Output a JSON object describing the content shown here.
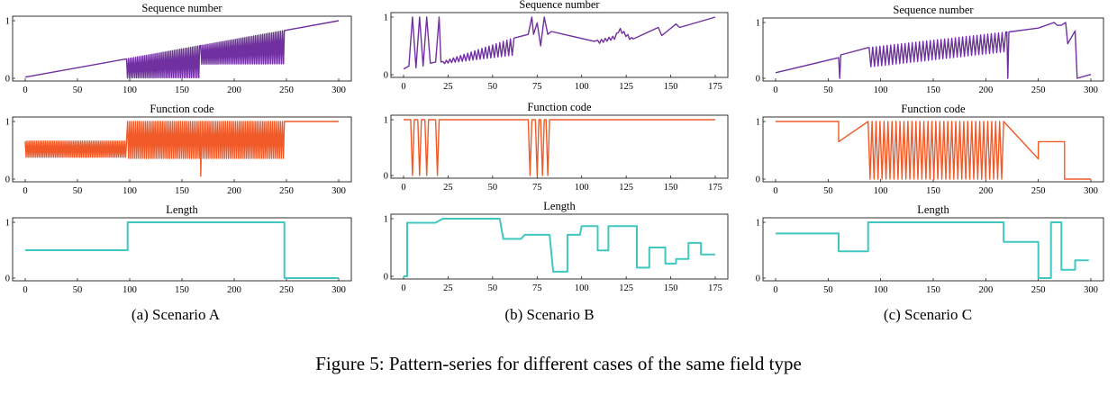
{
  "figure_caption": "Figure 5: Pattern-series for different cases of the same field type",
  "colors": {
    "sequence": "#7030A0",
    "function": "#F05A28",
    "length": "#40C8C0"
  },
  "scenarios": [
    {
      "caption": "(a)  Scenario A"
    },
    {
      "caption": "(b)  Scenario B"
    },
    {
      "caption": "(c)  Scenario C"
    }
  ],
  "chart_data": [
    {
      "type": "line",
      "scenario": "A",
      "title": "Sequence number",
      "color": "sequence",
      "xlim": [
        0,
        300
      ],
      "ylim": [
        0,
        1
      ],
      "xticks": [
        0,
        50,
        100,
        150,
        200,
        250,
        300
      ],
      "yticks": [
        0,
        1
      ],
      "pattern": {
        "kind": "linear_with_sawtooth",
        "base": [
          [
            0,
            0.02
          ],
          [
            300,
            1.0
          ]
        ],
        "segments": [
          {
            "from": 97,
            "to": 167,
            "n": 40,
            "low": 0.0
          },
          {
            "from": 168,
            "to": 248,
            "n": 46,
            "low": 0.24
          }
        ]
      }
    },
    {
      "type": "line",
      "scenario": "A",
      "title": "Function code",
      "color": "function",
      "xlim": [
        0,
        300
      ],
      "ylim": [
        0,
        1
      ],
      "xticks": [
        0,
        50,
        100,
        150,
        200,
        250,
        300
      ],
      "yticks": [
        0,
        1
      ],
      "pattern": {
        "kind": "oscillation",
        "segments": [
          {
            "from": 0,
            "to": 97,
            "n": 55,
            "lo": 0.38,
            "hi": 0.66
          },
          {
            "from": 98,
            "to": 248,
            "n": 80,
            "lo": 0.36,
            "hi": 1.0
          }
        ],
        "spikes": [
          [
            168,
            0.05
          ]
        ],
        "tail": [
          [
            250,
            1.0
          ],
          [
            300,
            1.0
          ]
        ]
      }
    },
    {
      "type": "line",
      "scenario": "A",
      "title": "Length",
      "color": "length",
      "xlim": [
        0,
        300
      ],
      "ylim": [
        0,
        1
      ],
      "xticks": [
        0,
        50,
        100,
        150,
        200,
        250,
        300
      ],
      "yticks": [
        0,
        1
      ],
      "steps": [
        [
          0,
          0.5
        ],
        [
          98,
          0.5
        ],
        [
          98,
          1.0
        ],
        [
          248,
          1.0
        ],
        [
          248,
          0.0
        ],
        [
          300,
          0.0
        ]
      ]
    },
    {
      "type": "line",
      "scenario": "B",
      "title": "Sequence number",
      "color": "sequence",
      "xlim": [
        0,
        175
      ],
      "ylim": [
        0,
        1
      ],
      "xticks": [
        0,
        25,
        50,
        75,
        100,
        125,
        150,
        175
      ],
      "yticks": [
        0,
        1
      ],
      "points": [
        [
          0,
          0.1
        ],
        [
          3,
          0.15
        ],
        [
          5,
          1.0
        ],
        [
          7,
          0.12
        ],
        [
          9,
          1.0
        ],
        [
          11,
          0.15
        ],
        [
          13,
          1.0
        ],
        [
          15,
          0.2
        ],
        [
          18,
          0.22
        ],
        [
          20,
          1.0
        ],
        [
          21,
          0.22
        ],
        [
          60,
          0.62
        ],
        [
          70,
          0.7
        ],
        [
          72,
          1.0
        ],
        [
          73,
          0.7
        ],
        [
          75,
          0.9
        ],
        [
          77,
          0.5
        ],
        [
          79,
          1.0
        ],
        [
          81,
          0.7
        ],
        [
          83,
          0.75
        ],
        [
          107,
          0.58
        ],
        [
          119,
          0.68
        ],
        [
          121,
          0.82
        ],
        [
          129,
          0.62
        ],
        [
          143,
          0.82
        ],
        [
          145,
          0.68
        ],
        [
          153,
          0.88
        ],
        [
          155,
          0.82
        ],
        [
          175,
          1.0
        ]
      ],
      "oscillations": [
        {
          "from": 22,
          "to": 62,
          "n": 20,
          "amp_start": 0.04,
          "amp_end": 0.3
        },
        {
          "from": 109,
          "to": 128,
          "n": 9,
          "amp_start": 0.06,
          "amp_end": 0.06
        }
      ]
    },
    {
      "type": "line",
      "scenario": "B",
      "title": "Function code",
      "color": "function",
      "xlim": [
        0,
        175
      ],
      "ylim": [
        0,
        1
      ],
      "xticks": [
        0,
        25,
        50,
        75,
        100,
        125,
        150,
        175
      ],
      "yticks": [
        0,
        1
      ],
      "points": [
        [
          0,
          1.0
        ],
        [
          4,
          1.0
        ],
        [
          5,
          0.0
        ],
        [
          6,
          1.0
        ],
        [
          8,
          1.0
        ],
        [
          9,
          0.0
        ],
        [
          10,
          1.0
        ],
        [
          12,
          1.0
        ],
        [
          13,
          0.0
        ],
        [
          14,
          1.0
        ],
        [
          18,
          1.0
        ],
        [
          19,
          0.0
        ],
        [
          20,
          1.0
        ],
        [
          70,
          1.0
        ],
        [
          71,
          0.0
        ],
        [
          72,
          1.0
        ],
        [
          74,
          1.0
        ],
        [
          75,
          0.0
        ],
        [
          76,
          1.0
        ],
        [
          77,
          1.0
        ],
        [
          78,
          0.0
        ],
        [
          79,
          1.0
        ],
        [
          80,
          1.0
        ],
        [
          81,
          0.0
        ],
        [
          82,
          1.0
        ],
        [
          175,
          1.0
        ]
      ]
    },
    {
      "type": "line",
      "scenario": "B",
      "title": "Length",
      "color": "length",
      "xlim": [
        0,
        175
      ],
      "ylim": [
        0,
        1
      ],
      "xticks": [
        0,
        25,
        50,
        75,
        100,
        125,
        150,
        175
      ],
      "yticks": [
        0,
        1
      ],
      "steps": [
        [
          0,
          0.0
        ],
        [
          2,
          0.0
        ],
        [
          2,
          0.93
        ],
        [
          18,
          0.93
        ],
        [
          22,
          1.0
        ],
        [
          54,
          1.0
        ],
        [
          56,
          0.65
        ],
        [
          66,
          0.65
        ],
        [
          68,
          0.72
        ],
        [
          82,
          0.72
        ],
        [
          84,
          0.08
        ],
        [
          92,
          0.08
        ],
        [
          92,
          0.72
        ],
        [
          99,
          0.72
        ],
        [
          100,
          0.87
        ],
        [
          109,
          0.87
        ],
        [
          109,
          0.45
        ],
        [
          115,
          0.45
        ],
        [
          115,
          0.87
        ],
        [
          131,
          0.87
        ],
        [
          131,
          0.15
        ],
        [
          138,
          0.15
        ],
        [
          138,
          0.5
        ],
        [
          147,
          0.5
        ],
        [
          147,
          0.22
        ],
        [
          153,
          0.22
        ],
        [
          153,
          0.3
        ],
        [
          160,
          0.3
        ],
        [
          160,
          0.58
        ],
        [
          167,
          0.58
        ],
        [
          167,
          0.38
        ],
        [
          175,
          0.38
        ]
      ]
    },
    {
      "type": "line",
      "scenario": "C",
      "title": "Sequence number",
      "color": "sequence",
      "xlim": [
        0,
        300
      ],
      "ylim": [
        0,
        1
      ],
      "xticks": [
        0,
        50,
        100,
        150,
        200,
        250,
        300
      ],
      "yticks": [
        0,
        1
      ],
      "points": [
        [
          0,
          0.1
        ],
        [
          60,
          0.37
        ],
        [
          61,
          0.0
        ],
        [
          62,
          0.42
        ],
        [
          88,
          0.55
        ],
        [
          220,
          0.83
        ],
        [
          221,
          0.0
        ],
        [
          222,
          0.83
        ],
        [
          250,
          0.9
        ],
        [
          265,
          1.0
        ],
        [
          268,
          0.95
        ],
        [
          272,
          0.95
        ],
        [
          276,
          1.0
        ],
        [
          278,
          0.62
        ],
        [
          285,
          0.85
        ],
        [
          287,
          0.0
        ],
        [
          300,
          0.07
        ]
      ],
      "oscillations": [
        {
          "from": 89,
          "to": 219,
          "n": 38,
          "amp_start": 0.35,
          "amp_end": 0.35
        }
      ]
    },
    {
      "type": "line",
      "scenario": "C",
      "title": "Function code",
      "color": "function",
      "xlim": [
        0,
        300
      ],
      "ylim": [
        0,
        1
      ],
      "xticks": [
        0,
        50,
        100,
        150,
        200,
        250,
        300
      ],
      "yticks": [
        0,
        1
      ],
      "steps": [
        [
          0,
          1.0
        ],
        [
          60,
          1.0
        ],
        [
          60,
          0.65
        ],
        [
          88,
          0.65
        ],
        [
          90,
          0.35
        ],
        [
          217,
          0.35
        ],
        [
          217,
          0.35
        ],
        [
          250,
          0.35
        ],
        [
          250,
          0.65
        ],
        [
          275,
          0.65
        ],
        [
          275,
          0.0
        ],
        [
          300,
          0.0
        ]
      ],
      "oscillations": [
        {
          "from": 88,
          "to": 217,
          "n": 34,
          "lo": 0.0,
          "hi": 1.0
        }
      ]
    },
    {
      "type": "line",
      "scenario": "C",
      "title": "Length",
      "color": "length",
      "xlim": [
        0,
        300
      ],
      "ylim": [
        0,
        1
      ],
      "xticks": [
        0,
        50,
        100,
        150,
        200,
        250,
        300
      ],
      "yticks": [
        0,
        1
      ],
      "steps": [
        [
          0,
          0.8
        ],
        [
          60,
          0.8
        ],
        [
          60,
          0.48
        ],
        [
          88,
          0.48
        ],
        [
          88,
          1.0
        ],
        [
          217,
          1.0
        ],
        [
          217,
          0.65
        ],
        [
          250,
          0.65
        ],
        [
          250,
          0.0
        ],
        [
          262,
          0.0
        ],
        [
          262,
          1.0
        ],
        [
          272,
          1.0
        ],
        [
          272,
          0.15
        ],
        [
          285,
          0.15
        ],
        [
          285,
          0.32
        ],
        [
          298,
          0.32
        ]
      ]
    }
  ]
}
